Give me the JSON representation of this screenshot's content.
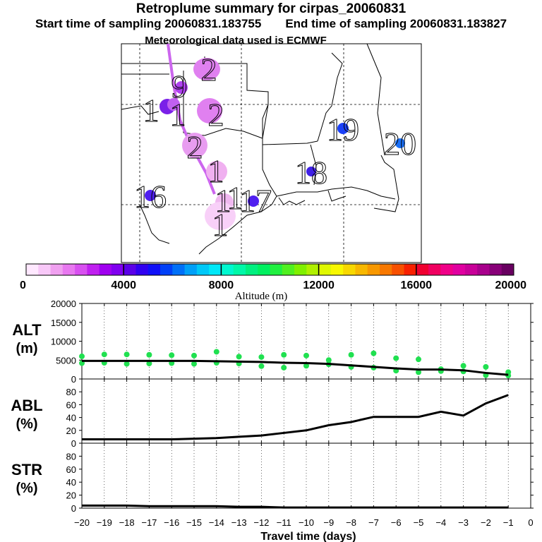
{
  "title": "Retroplume summary for cirpas_20060831",
  "start_label": "Start time of sampling 20060831.183755",
  "end_label": "End time of sampling 20060831.183827",
  "met_label": "Meteorological data used is ECMWF",
  "colorbar": {
    "label": "Altitude (m)",
    "ticks": [
      "0",
      "4000",
      "8000",
      "12000",
      "16000",
      "20000"
    ],
    "colors": [
      "#ffe8ff",
      "#f8c8f8",
      "#f0a0f0",
      "#e878f0",
      "#d850f0",
      "#c020f0",
      "#a000f0",
      "#8000f0",
      "#5a00e8",
      "#3000f0",
      "#1010f8",
      "#0040f8",
      "#0070f8",
      "#00a0f8",
      "#00c8f8",
      "#00e8f8",
      "#00f8d0",
      "#00f8a8",
      "#00f080",
      "#00f060",
      "#20f040",
      "#50f020",
      "#80f000",
      "#b0f000",
      "#e0f800",
      "#f8f800",
      "#f8d800",
      "#f8b800",
      "#f89800",
      "#f87800",
      "#f85000",
      "#f82000",
      "#f00030",
      "#f00060",
      "#f00088",
      "#e000a0",
      "#c80098",
      "#a8008c",
      "#880078",
      "#680060"
    ]
  },
  "map_numbers": [
    {
      "text": "2",
      "color": "#e080f0"
    },
    {
      "text": "9",
      "color": "#b040f0"
    },
    {
      "text": "1",
      "color": "#7a20e8"
    },
    {
      "text": "1",
      "color": "#c060f0"
    },
    {
      "text": "2",
      "color": "#e080f0"
    },
    {
      "text": "2",
      "color": "#e89cf0"
    },
    {
      "text": "1",
      "color": "#f0b0f0"
    },
    {
      "text": "1",
      "color": "#f0b8f0"
    },
    {
      "text": "1",
      "color": "#f8d0f8"
    },
    {
      "text": "1",
      "color": "#f8d8f8"
    },
    {
      "text": "16",
      "color": "#5020f0"
    },
    {
      "text": "17",
      "color": "#5020f0"
    },
    {
      "text": "18",
      "color": "#4020e8"
    },
    {
      "text": "19",
      "color": "#1a40f8"
    },
    {
      "text": "20",
      "color": "#1a70f8"
    }
  ],
  "chart_data": [
    {
      "type": "scatter",
      "name": "ALT",
      "ylabel": "ALT",
      "yunit": "(m)",
      "ylim": [
        0,
        20000
      ],
      "yticks": [
        0,
        5000,
        10000,
        15000,
        20000
      ],
      "xlim": [
        -20,
        0
      ],
      "line": {
        "x": [
          -20,
          -19,
          -18,
          -17,
          -16,
          -15,
          -14,
          -13,
          -12,
          -11,
          -10,
          -9,
          -8,
          -7,
          -6,
          -5,
          -4,
          -3,
          -2,
          -1
        ],
        "y": [
          4800,
          4800,
          4800,
          4800,
          4800,
          4800,
          4700,
          4600,
          4500,
          4300,
          4200,
          4000,
          3600,
          3200,
          2800,
          2500,
          2500,
          2300,
          1600,
          1100
        ]
      },
      "points": {
        "x": [
          -20,
          -20,
          -19,
          -19,
          -18,
          -18,
          -17,
          -17,
          -16,
          -16,
          -15,
          -15,
          -14,
          -14,
          -13,
          -13,
          -12,
          -12,
          -11,
          -11,
          -10,
          -10,
          -9,
          -9,
          -8,
          -8,
          -7,
          -7,
          -6,
          -6,
          -5,
          -5,
          -4,
          -4,
          -3,
          -3,
          -2,
          -2,
          -1,
          -1
        ],
        "y": [
          6000,
          4200,
          6500,
          4300,
          6500,
          4000,
          6400,
          4100,
          6300,
          4200,
          6200,
          4000,
          7200,
          4300,
          5900,
          4100,
          5800,
          3400,
          6400,
          3000,
          6200,
          3500,
          5000,
          3900,
          6400,
          3200,
          6800,
          3000,
          5500,
          2200,
          5200,
          1800,
          2600,
          2100,
          3500,
          2000,
          3200,
          1000,
          1800,
          900
        ]
      }
    },
    {
      "type": "line",
      "name": "ABL",
      "ylabel": "ABL",
      "yunit": "(%)",
      "ylim": [
        0,
        100
      ],
      "yticks": [
        0,
        20,
        40,
        60,
        80
      ],
      "x": [
        -20,
        -19,
        -18,
        -17,
        -16,
        -15,
        -14,
        -13,
        -12,
        -11,
        -10,
        -9,
        -8,
        -7,
        -6,
        -5,
        -4,
        -3,
        -2,
        -1
      ],
      "y": [
        6,
        6,
        6,
        6,
        6,
        7,
        8,
        10,
        12,
        16,
        20,
        28,
        33,
        41,
        41,
        41,
        49,
        43,
        62,
        75
      ]
    },
    {
      "type": "line",
      "name": "STR",
      "ylabel": "STR",
      "yunit": "(%)",
      "ylim": [
        0,
        100
      ],
      "yticks": [
        0,
        20,
        40,
        60,
        80
      ],
      "x": [
        -20,
        -19,
        -18,
        -17,
        -16,
        -15,
        -14,
        -13,
        -12,
        -11,
        -10,
        -9,
        -8,
        -7,
        -6,
        -5,
        -4,
        -3,
        -2,
        -1
      ],
      "y": [
        4,
        4,
        4,
        3,
        3,
        3,
        3,
        2,
        2,
        1,
        1,
        1,
        1,
        1,
        1,
        1,
        1,
        1,
        1,
        1
      ],
      "xlabel": "Travel time (days)",
      "xticks": [
        "−20",
        "−19",
        "−18",
        "−17",
        "−16",
        "−15",
        "−14",
        "−13",
        "−12",
        "−11",
        "−10",
        "−9",
        "−8",
        "−7",
        "−6",
        "−5",
        "−4",
        "−3",
        "−2",
        "−1",
        "0"
      ]
    }
  ]
}
